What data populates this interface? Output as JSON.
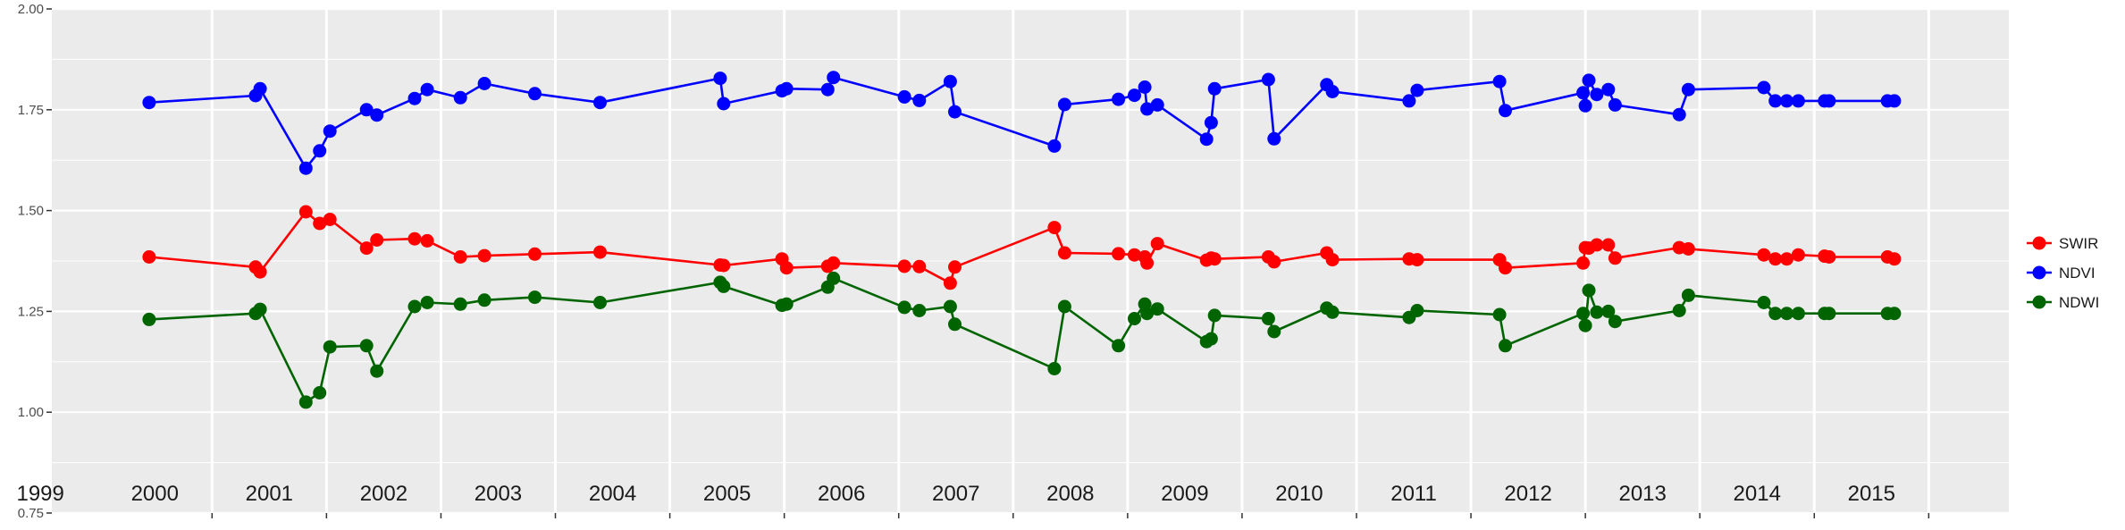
{
  "chart_data": {
    "type": "line",
    "title": "",
    "xlabel": "",
    "ylabel": "",
    "xlim": [
      1998.6,
      2015.7
    ],
    "ylim": [
      0.75,
      2.0
    ],
    "y_ticks": [
      "0.75",
      "1.00",
      "1.25",
      "1.50",
      "1.75",
      "2.00"
    ],
    "year_labels": [
      "1999",
      "2000",
      "2001",
      "2002",
      "2003",
      "2004",
      "2005",
      "2006",
      "2007",
      "2008",
      "2009",
      "2010",
      "2011",
      "2012",
      "2013",
      "2014",
      "2015"
    ],
    "grid": true,
    "legend_position": "right",
    "series": [
      {
        "name": "SWIR",
        "color": "#ff0000",
        "x": [
          1999.45,
          2000.38,
          2000.42,
          2000.82,
          2000.94,
          2001.03,
          2001.35,
          2001.44,
          2001.77,
          2001.88,
          2002.17,
          2002.38,
          2002.82,
          2003.39,
          2004.44,
          2004.47,
          2004.98,
          2005.02,
          2005.38,
          2005.43,
          2006.05,
          2006.18,
          2006.45,
          2006.49,
          2007.36,
          2007.45,
          2007.92,
          2008.06,
          2008.15,
          2008.17,
          2008.26,
          2008.69,
          2008.73,
          2008.76,
          2009.23,
          2009.28,
          2009.74,
          2009.79,
          2010.46,
          2010.53,
          2011.25,
          2011.3,
          2011.98,
          2012.0,
          2012.03,
          2012.1,
          2012.2,
          2012.26,
          2012.82,
          2012.9,
          2013.56,
          2013.66,
          2013.76,
          2013.86,
          2014.09,
          2014.13,
          2014.64,
          2014.7
        ],
        "values": [
          1.385,
          1.36,
          1.348,
          1.497,
          1.468,
          1.478,
          1.407,
          1.427,
          1.43,
          1.425,
          1.385,
          1.388,
          1.392,
          1.397,
          1.365,
          1.364,
          1.38,
          1.358,
          1.362,
          1.37,
          1.362,
          1.361,
          1.32,
          1.36,
          1.458,
          1.395,
          1.393,
          1.39,
          1.385,
          1.37,
          1.418,
          1.377,
          1.382,
          1.38,
          1.385,
          1.373,
          1.395,
          1.378,
          1.38,
          1.378,
          1.378,
          1.358,
          1.37,
          1.408,
          1.407,
          1.415,
          1.415,
          1.382,
          1.408,
          1.405,
          1.39,
          1.38,
          1.38,
          1.39,
          1.387,
          1.385,
          1.385,
          1.38
        ]
      },
      {
        "name": "NDVI",
        "color": "#0000ff",
        "x": [
          1999.45,
          2000.38,
          2000.42,
          2000.82,
          2000.94,
          2001.03,
          2001.35,
          2001.44,
          2001.77,
          2001.88,
          2002.17,
          2002.38,
          2002.82,
          2003.39,
          2004.44,
          2004.47,
          2004.98,
          2005.02,
          2005.38,
          2005.43,
          2006.05,
          2006.18,
          2006.45,
          2006.49,
          2007.36,
          2007.45,
          2007.92,
          2008.06,
          2008.15,
          2008.17,
          2008.26,
          2008.69,
          2008.73,
          2008.76,
          2009.23,
          2009.28,
          2009.74,
          2009.79,
          2010.46,
          2010.53,
          2011.25,
          2011.3,
          2011.98,
          2012.0,
          2012.03,
          2012.1,
          2012.2,
          2012.26,
          2012.82,
          2012.9,
          2013.56,
          2013.66,
          2013.76,
          2013.86,
          2014.09,
          2014.13,
          2014.64,
          2014.7
        ],
        "values": [
          1.768,
          1.785,
          1.802,
          1.605,
          1.648,
          1.697,
          1.75,
          1.737,
          1.778,
          1.8,
          1.78,
          1.815,
          1.79,
          1.768,
          1.828,
          1.765,
          1.797,
          1.802,
          1.8,
          1.83,
          1.782,
          1.773,
          1.82,
          1.745,
          1.66,
          1.763,
          1.776,
          1.786,
          1.806,
          1.752,
          1.762,
          1.677,
          1.718,
          1.802,
          1.825,
          1.678,
          1.812,
          1.795,
          1.772,
          1.798,
          1.82,
          1.748,
          1.792,
          1.76,
          1.823,
          1.788,
          1.8,
          1.762,
          1.738,
          1.8,
          1.805,
          1.772,
          1.772,
          1.772,
          1.772,
          1.772,
          1.772,
          1.772
        ]
      },
      {
        "name": "NDWI",
        "color": "#006400",
        "x": [
          1999.45,
          2000.38,
          2000.42,
          2000.82,
          2000.94,
          2001.03,
          2001.35,
          2001.44,
          2001.77,
          2001.88,
          2002.17,
          2002.38,
          2002.82,
          2003.39,
          2004.44,
          2004.47,
          2004.98,
          2005.02,
          2005.38,
          2005.43,
          2006.05,
          2006.18,
          2006.45,
          2006.49,
          2007.36,
          2007.45,
          2007.92,
          2008.06,
          2008.15,
          2008.17,
          2008.26,
          2008.69,
          2008.73,
          2008.76,
          2009.23,
          2009.28,
          2009.74,
          2009.79,
          2010.46,
          2010.53,
          2011.25,
          2011.3,
          2011.98,
          2012.0,
          2012.03,
          2012.1,
          2012.2,
          2012.26,
          2012.82,
          2012.9,
          2013.56,
          2013.66,
          2013.76,
          2013.86,
          2014.09,
          2014.13,
          2014.64,
          2014.7
        ],
        "values": [
          1.23,
          1.245,
          1.255,
          1.025,
          1.048,
          1.162,
          1.165,
          1.102,
          1.262,
          1.272,
          1.268,
          1.278,
          1.285,
          1.272,
          1.322,
          1.312,
          1.265,
          1.268,
          1.31,
          1.332,
          1.26,
          1.252,
          1.262,
          1.218,
          1.108,
          1.262,
          1.165,
          1.232,
          1.268,
          1.245,
          1.256,
          1.175,
          1.182,
          1.24,
          1.232,
          1.2,
          1.258,
          1.248,
          1.235,
          1.252,
          1.242,
          1.165,
          1.245,
          1.215,
          1.302,
          1.248,
          1.25,
          1.225,
          1.252,
          1.29,
          1.272,
          1.245,
          1.245,
          1.245,
          1.245,
          1.245,
          1.245,
          1.245
        ]
      }
    ]
  }
}
